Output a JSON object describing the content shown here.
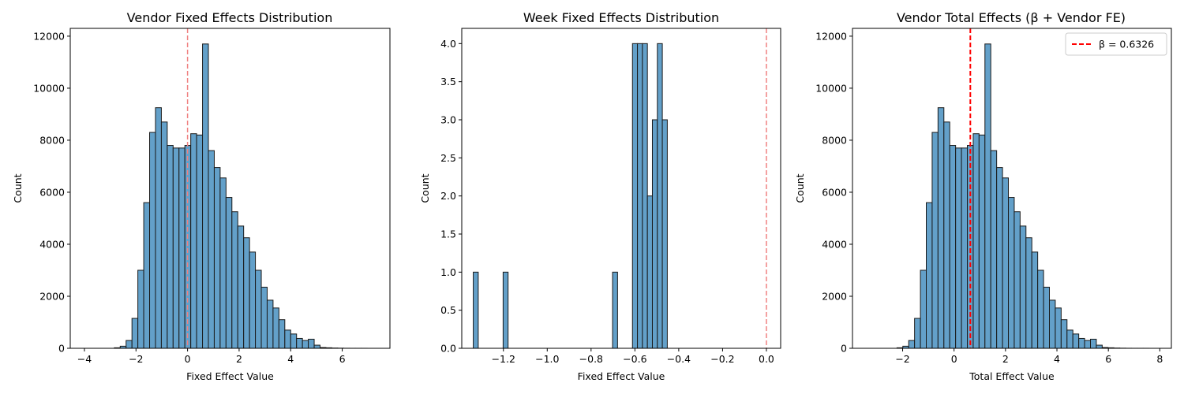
{
  "chart_data": [
    {
      "type": "bar",
      "title": "Vendor Fixed Effects Distribution",
      "xlabel": "Fixed Effect Value",
      "ylabel": "Count",
      "xlim": [
        -4.55,
        7.85
      ],
      "ylim": [
        0,
        12300
      ],
      "xticks": [
        -4,
        -2,
        0,
        2,
        4,
        6
      ],
      "xtick_labels": [
        "−4",
        "−2",
        "0",
        "2",
        "4",
        "6"
      ],
      "yticks": [
        0,
        2000,
        4000,
        6000,
        8000,
        10000,
        12000
      ],
      "ytick_labels": [
        "0",
        "2000",
        "4000",
        "6000",
        "8000",
        "10000",
        "12000"
      ],
      "bin_start": -3.98,
      "bin_width": 0.228,
      "counts": [
        0,
        0,
        0,
        0,
        0,
        20,
        80,
        300,
        1150,
        3000,
        5600,
        8300,
        9250,
        8700,
        7800,
        7700,
        7700,
        7800,
        8250,
        8200,
        11700,
        7600,
        6950,
        6550,
        5800,
        5250,
        4700,
        4250,
        3700,
        3000,
        2350,
        1850,
        1550,
        1100,
        700,
        550,
        380,
        300,
        350,
        120,
        30,
        20,
        10,
        5,
        2,
        1,
        1,
        1,
        0,
        0
      ],
      "color": "#5b9bc6",
      "ref_lines": [
        {
          "x": 0,
          "color": "#f08080",
          "style": "dashed"
        }
      ]
    },
    {
      "type": "bar",
      "title": "Week Fixed Effects Distribution",
      "xlabel": "Fixed Effect Value",
      "ylabel": "Count",
      "xlim": [
        -1.39,
        0.065
      ],
      "ylim": [
        0,
        4.2
      ],
      "xticks": [
        -1.2,
        -1.0,
        -0.8,
        -0.6,
        -0.4,
        -0.2,
        0.0
      ],
      "xtick_labels": [
        "−1.2",
        "−1.0",
        "−0.8",
        "−0.6",
        "−0.4",
        "−0.2",
        "0.0"
      ],
      "yticks": [
        0,
        0.5,
        1.0,
        1.5,
        2.0,
        2.5,
        3.0,
        3.5,
        4.0
      ],
      "ytick_labels": [
        "0.0",
        "0.5",
        "1.0",
        "1.5",
        "2.0",
        "2.5",
        "3.0",
        "3.5",
        "4.0"
      ],
      "bin_start": -1.3375,
      "bin_width": 0.0227,
      "counts": [
        1,
        0,
        0,
        0,
        0,
        0,
        1,
        0,
        0,
        0,
        0,
        0,
        0,
        0,
        0,
        0,
        0,
        0,
        0,
        0,
        0,
        0,
        0,
        0,
        0,
        0,
        0,
        0,
        1,
        0,
        0,
        0,
        4,
        4,
        4,
        2,
        3,
        4,
        3
      ],
      "color": "#5b9bc6",
      "ref_lines": [
        {
          "x": 0,
          "color": "#f08080",
          "style": "dashed"
        }
      ]
    },
    {
      "type": "bar",
      "title": "Vendor Total Effects (β + Vendor FE)",
      "xlabel": "Total Effect Value",
      "ylabel": "Count",
      "xlim": [
        -3.95,
        8.45
      ],
      "ylim": [
        0,
        12300
      ],
      "xticks": [
        -2,
        0,
        2,
        4,
        6,
        8
      ],
      "xtick_labels": [
        "−2",
        "0",
        "2",
        "4",
        "6",
        "8"
      ],
      "yticks": [
        0,
        2000,
        4000,
        6000,
        8000,
        10000,
        12000
      ],
      "ytick_labels": [
        "0",
        "2000",
        "4000",
        "6000",
        "8000",
        "10000",
        "12000"
      ],
      "bin_start": -3.36,
      "bin_width": 0.228,
      "counts": [
        0,
        0,
        0,
        0,
        0,
        20,
        80,
        300,
        1150,
        3000,
        5600,
        8300,
        9250,
        8700,
        7800,
        7700,
        7700,
        7800,
        8250,
        8200,
        11700,
        7600,
        6950,
        6550,
        5800,
        5250,
        4700,
        4250,
        3700,
        3000,
        2350,
        1850,
        1550,
        1100,
        700,
        550,
        380,
        300,
        350,
        120,
        30,
        20,
        10,
        5,
        2,
        1,
        1,
        1,
        0,
        0
      ],
      "color": "#5b9bc6",
      "ref_lines": [
        {
          "x": 0.6326,
          "color": "#ff0000",
          "style": "dashed"
        }
      ],
      "legend": {
        "label": "β = 0.6326",
        "placement": "top-right"
      }
    }
  ]
}
